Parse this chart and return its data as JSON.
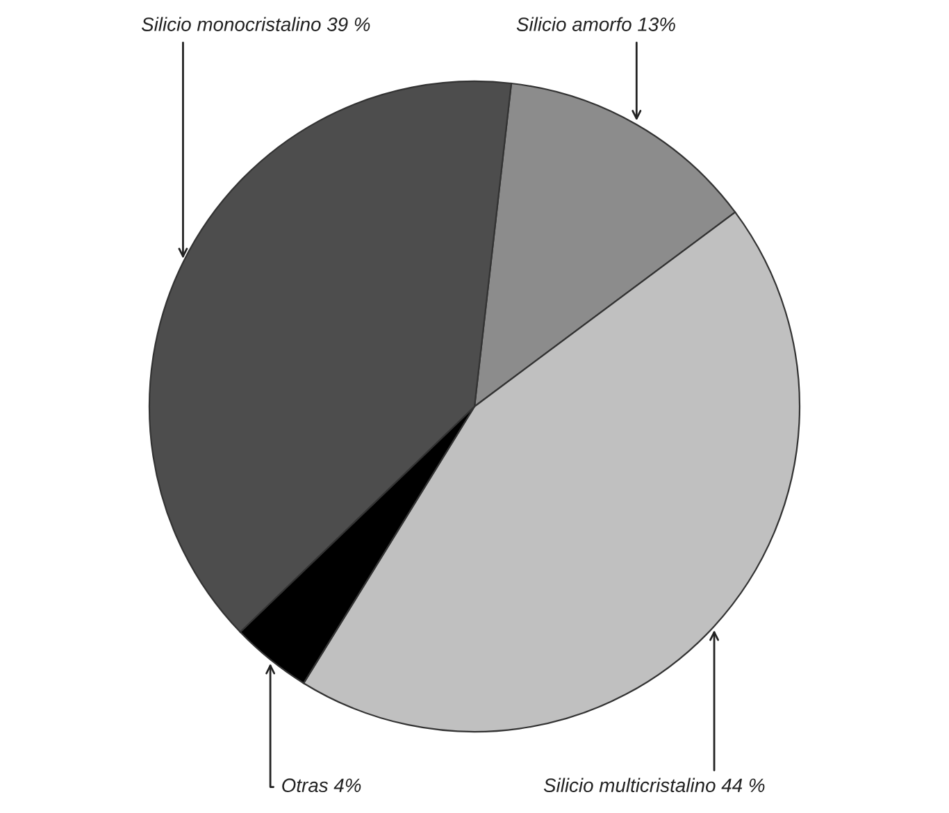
{
  "chart_data": {
    "type": "pie",
    "categories": [
      "Silicio amorfo",
      "Silicio multicristalino",
      "Otras",
      "Silicio monocristalino"
    ],
    "values": [
      13,
      44,
      4,
      39
    ],
    "value_labels": [
      "13%",
      "44 %",
      "4%",
      "39 %"
    ],
    "colors": [
      "#8c8c8c",
      "#c0c0c0",
      "#000000",
      "#4d4d4d"
    ]
  }
}
